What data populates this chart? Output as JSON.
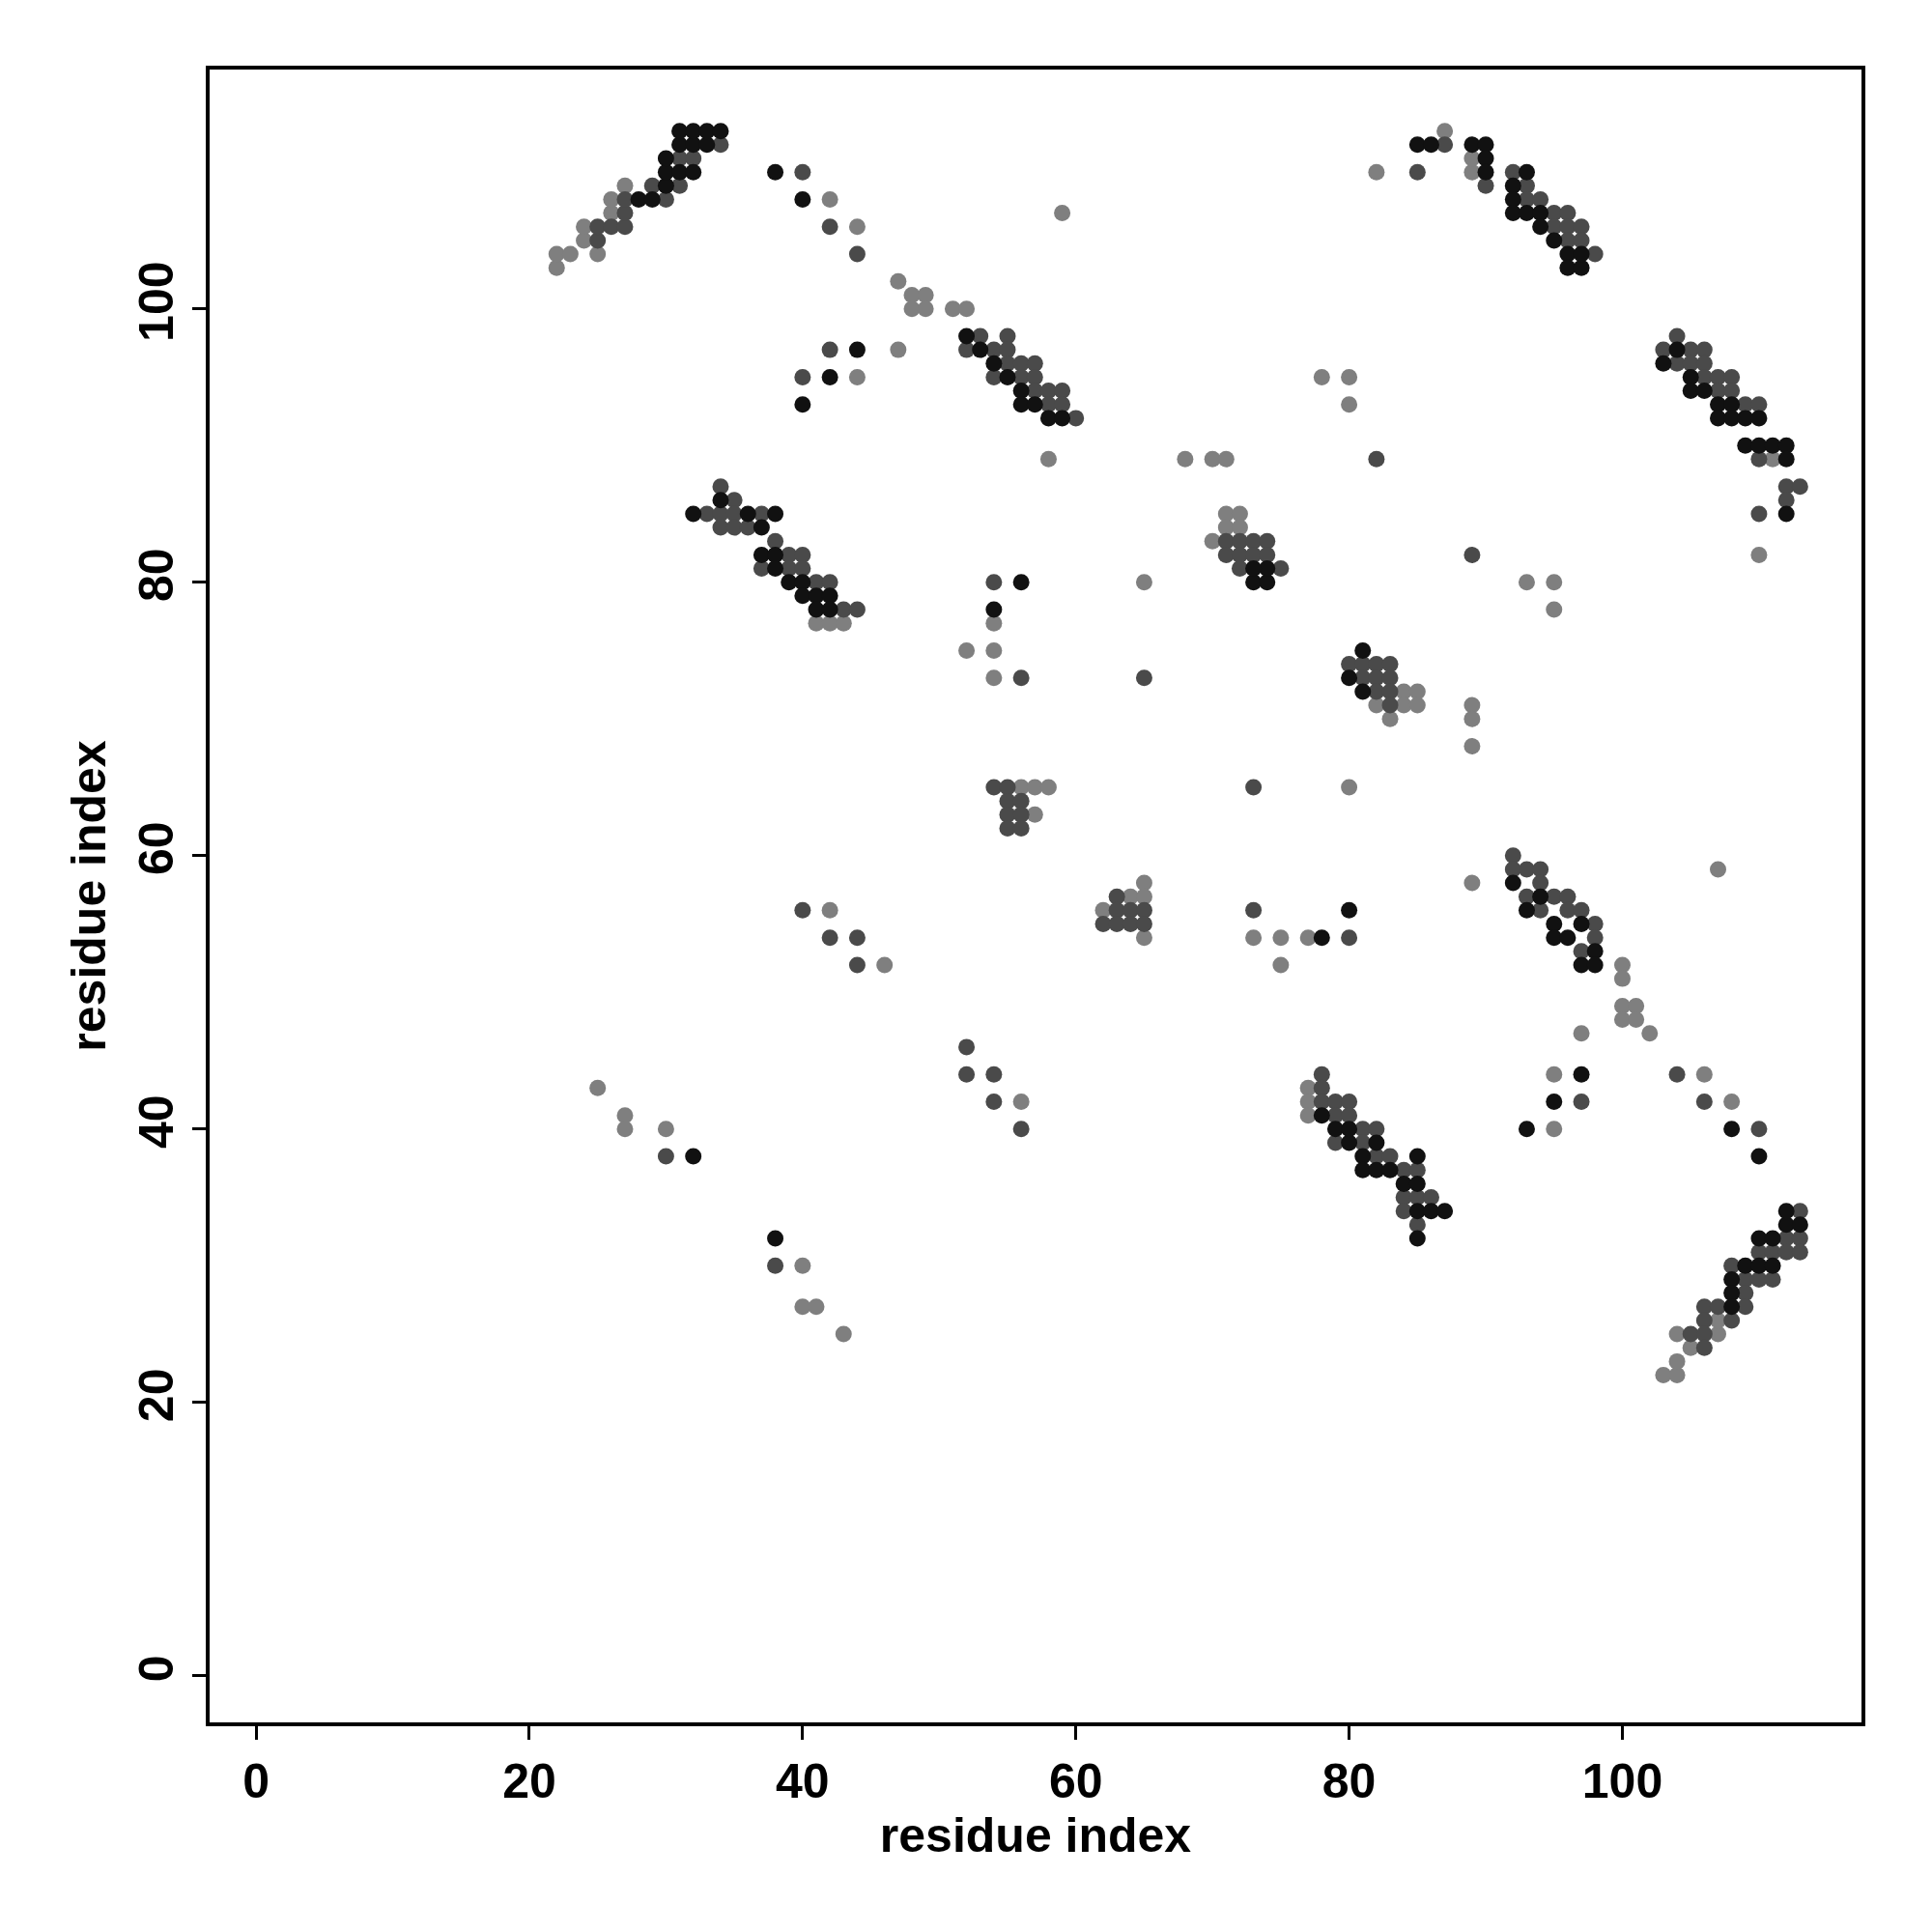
{
  "chart_data": {
    "type": "scatter",
    "xlabel": "residue index",
    "ylabel": "residue index",
    "xlim": [
      -3.4,
      117.5
    ],
    "ylim": [
      -3.4,
      117.5
    ],
    "xticks": [
      0,
      20,
      40,
      60,
      80,
      100
    ],
    "yticks": [
      0,
      20,
      40,
      60,
      80,
      100
    ],
    "marker": "circle",
    "series": [
      {
        "color": "#7f7f7f",
        "x": [
          22,
          22,
          23,
          24,
          24,
          25,
          26,
          26,
          27,
          42,
          44,
          47,
          48,
          49,
          48,
          49,
          51,
          52,
          47,
          44,
          59,
          58,
          41,
          42,
          43,
          52,
          54,
          54,
          54,
          65,
          56,
          57,
          58,
          57,
          62,
          64,
          65,
          65,
          65,
          42,
          46,
          25,
          27,
          27,
          30,
          40,
          40,
          41,
          43,
          56,
          68,
          70,
          71,
          71,
          72,
          71,
          72,
          70,
          73,
          75,
          75,
          77,
          78,
          80,
          80,
          82,
          80,
          82,
          83,
          84,
          84,
          85,
          85,
          89,
          89,
          89,
          93,
          95,
          95,
          77,
          77,
          77,
          89,
          89,
          87,
          111,
          110,
          89,
          107,
          100,
          100,
          100,
          100,
          101,
          101,
          102,
          97,
          95,
          95,
          106,
          108,
          103,
          104,
          104,
          104,
          105,
          107,
          107
        ],
        "values": [
          103,
          104,
          104,
          105,
          106,
          104,
          107,
          108,
          109,
          108,
          106,
          102,
          101,
          101,
          100,
          100,
          100,
          100,
          97,
          95,
          107,
          89,
          77,
          77,
          77,
          75,
          77,
          75,
          73,
          80,
          65,
          65,
          65,
          63,
          56,
          57,
          58,
          57,
          54,
          56,
          52,
          43,
          41,
          40,
          40,
          30,
          27,
          27,
          25,
          42,
          89,
          89,
          89,
          85,
          85,
          84,
          84,
          83,
          54,
          54,
          52,
          54,
          95,
          95,
          93,
          110,
          65,
          71,
          70,
          72,
          71,
          72,
          71,
          71,
          70,
          68,
          80,
          80,
          78,
          43,
          42,
          41,
          110,
          111,
          113,
          89,
          82,
          58,
          59,
          52,
          51,
          49,
          48,
          49,
          48,
          47,
          47,
          44,
          40,
          44,
          42,
          22,
          22,
          23,
          25,
          24,
          25,
          26
        ]
      },
      {
        "color": "#4a4a4a",
        "x": [
          25,
          25,
          26,
          27,
          27,
          27,
          29,
          30,
          31,
          31,
          32,
          34,
          40,
          42,
          44,
          40,
          42,
          52,
          53,
          54,
          54,
          55,
          55,
          55,
          56,
          56,
          57,
          57,
          57,
          58,
          58,
          59,
          59,
          60,
          33,
          34,
          34,
          34,
          35,
          35,
          35,
          36,
          37,
          37,
          38,
          39,
          39,
          40,
          40,
          41,
          42,
          43,
          44,
          54,
          56,
          65,
          54,
          55,
          55,
          56,
          55,
          56,
          55,
          56,
          62,
          63,
          63,
          63,
          64,
          64,
          65,
          65,
          40,
          42,
          44,
          44,
          30,
          38,
          52,
          52,
          54,
          54,
          56,
          71,
          71,
          72,
          72,
          72,
          73,
          73,
          74,
          74,
          75,
          73,
          73,
          80,
          82,
          80,
          81,
          81,
          82,
          82,
          82,
          83,
          83,
          83,
          83,
          89,
          78,
          78,
          78,
          79,
          79,
          79,
          80,
          80,
          81,
          81,
          82,
          82,
          83,
          84,
          84,
          84,
          85,
          85,
          85,
          86,
          85,
          87,
          90,
          92,
          93,
          93,
          94,
          95,
          95,
          96,
          96,
          96,
          97,
          97,
          98,
          103,
          104,
          104,
          105,
          105,
          106,
          106,
          106,
          107,
          107,
          108,
          108,
          109,
          110,
          110,
          112,
          112,
          113,
          110,
          92,
          92,
          93,
          93,
          94,
          94,
          94,
          95,
          96,
          96,
          97,
          97,
          98,
          98,
          97,
          104,
          106,
          110,
          105,
          106,
          106,
          106,
          106,
          107,
          108,
          108,
          109,
          109,
          109,
          110,
          110,
          111,
          111,
          112,
          112,
          113,
          113,
          113
        ],
        "values": [
          105,
          106,
          106,
          106,
          107,
          108,
          109,
          108,
          109,
          111,
          111,
          112,
          110,
          106,
          104,
          95,
          97,
          97,
          98,
          97,
          95,
          98,
          97,
          96,
          96,
          95,
          96,
          95,
          94,
          94,
          93,
          94,
          93,
          92,
          85,
          87,
          85,
          84,
          86,
          85,
          84,
          84,
          85,
          81,
          83,
          82,
          81,
          82,
          81,
          80,
          80,
          78,
          78,
          80,
          73,
          73,
          65,
          65,
          64,
          64,
          63,
          63,
          62,
          62,
          55,
          57,
          56,
          55,
          56,
          55,
          56,
          55,
          56,
          54,
          54,
          52,
          38,
          30,
          46,
          44,
          44,
          42,
          40,
          83,
          82,
          83,
          82,
          81,
          83,
          82,
          83,
          82,
          81,
          65,
          56,
          54,
          89,
          74,
          74,
          73,
          74,
          73,
          72,
          74,
          73,
          72,
          71,
          82,
          44,
          43,
          42,
          42,
          41,
          39,
          42,
          41,
          40,
          39,
          40,
          38,
          38,
          37,
          35,
          34,
          37,
          35,
          33,
          35,
          110,
          112,
          109,
          110,
          109,
          108,
          108,
          107,
          106,
          107,
          106,
          105,
          106,
          105,
          104,
          97,
          98,
          96,
          97,
          96,
          97,
          96,
          95,
          95,
          94,
          95,
          94,
          93,
          93,
          89,
          87,
          86,
          87,
          85,
          60,
          59,
          59,
          57,
          59,
          58,
          56,
          57,
          57,
          56,
          56,
          53,
          55,
          54,
          42,
          44,
          42,
          40,
          25,
          27,
          26,
          25,
          24,
          27,
          30,
          26,
          29,
          28,
          27,
          31,
          29,
          31,
          29,
          32,
          31,
          34,
          32,
          31
        ]
      },
      {
        "color": "#111111",
        "x": [
          28,
          29,
          30,
          30,
          30,
          31,
          31,
          31,
          32,
          32,
          32,
          33,
          33,
          34,
          38,
          40,
          40,
          42,
          44,
          52,
          53,
          54,
          55,
          56,
          56,
          57,
          58,
          59,
          32,
          34,
          36,
          37,
          37,
          38,
          38,
          38,
          39,
          40,
          40,
          41,
          41,
          42,
          42,
          54,
          56,
          32,
          38,
          73,
          74,
          74,
          73,
          78,
          80,
          80,
          81,
          81,
          78,
          79,
          80,
          80,
          81,
          81,
          82,
          82,
          83,
          84,
          85,
          85,
          85,
          85,
          86,
          87,
          85,
          86,
          89,
          90,
          90,
          90,
          92,
          92,
          92,
          93,
          93,
          94,
          94,
          95,
          96,
          96,
          97,
          97,
          104,
          103,
          105,
          105,
          106,
          107,
          107,
          108,
          108,
          109,
          110,
          109,
          110,
          111,
          112,
          112,
          112,
          92,
          93,
          94,
          95,
          95,
          96,
          97,
          97,
          98,
          98,
          93,
          95,
          97,
          108,
          110,
          108,
          108,
          108,
          109,
          110,
          110,
          111,
          111,
          112,
          112,
          113
        ],
        "values": [
          108,
          108,
          109,
          110,
          111,
          110,
          112,
          113,
          110,
          112,
          113,
          112,
          113,
          113,
          110,
          108,
          93,
          95,
          97,
          98,
          97,
          96,
          95,
          94,
          93,
          93,
          92,
          92,
          85,
          86,
          85,
          84,
          82,
          85,
          82,
          81,
          80,
          80,
          79,
          79,
          78,
          79,
          78,
          78,
          80,
          38,
          32,
          80,
          80,
          81,
          81,
          54,
          56,
          73,
          72,
          75,
          41,
          40,
          39,
          40,
          38,
          37,
          37,
          39,
          37,
          36,
          38,
          36,
          34,
          32,
          34,
          34,
          112,
          112,
          112,
          112,
          111,
          110,
          109,
          108,
          107,
          110,
          107,
          107,
          106,
          105,
          104,
          103,
          103,
          104,
          97,
          96,
          95,
          94,
          94,
          93,
          92,
          93,
          92,
          92,
          92,
          90,
          90,
          90,
          90,
          89,
          85,
          58,
          56,
          57,
          55,
          54,
          54,
          55,
          52,
          53,
          52,
          40,
          42,
          44,
          40,
          38,
          29,
          28,
          27,
          30,
          32,
          30,
          32,
          30,
          33,
          34,
          33
        ]
      }
    ]
  }
}
